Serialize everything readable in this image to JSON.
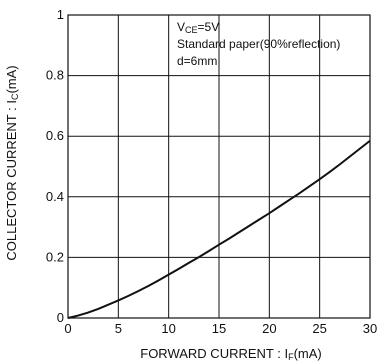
{
  "chart_data": {
    "type": "line",
    "title": "",
    "xlabel": {
      "text": "FORWARD CURRENT : I",
      "subscript": "F",
      "unit": "(mA)"
    },
    "ylabel": {
      "text": "COLLECTOR CURRENT : I",
      "subscript": "C",
      "unit": "(mA)"
    },
    "xlim": [
      0,
      30
    ],
    "ylim": [
      0,
      1
    ],
    "xticks": [
      0,
      5,
      10,
      15,
      20,
      25,
      30
    ],
    "yticks": [
      0,
      0.2,
      0.4,
      0.6,
      0.8,
      1
    ],
    "ytick_labels": [
      "0",
      "0.2",
      "0.4",
      "0.6",
      "0.8",
      "1"
    ],
    "xtick_labels": [
      "0",
      "5",
      "10",
      "15",
      "20",
      "25",
      "30"
    ],
    "grid": true,
    "annotations": {
      "vce": {
        "main": "V",
        "subscript": "CE",
        "rest": "=5V"
      },
      "paper": "Standard paper(90%reflection)",
      "distance": "d=6mm"
    },
    "series": [
      {
        "x": [
          0,
          1,
          2,
          3,
          4,
          5,
          6,
          7,
          8,
          9,
          10,
          11,
          12,
          13,
          14,
          15,
          16,
          17,
          18,
          19,
          20,
          21,
          22,
          23,
          24,
          25,
          26,
          27,
          28,
          29,
          30
        ],
        "y": [
          0,
          0.008,
          0.018,
          0.03,
          0.044,
          0.058,
          0.073,
          0.089,
          0.106,
          0.124,
          0.143,
          0.162,
          0.182,
          0.201,
          0.221,
          0.242,
          0.262,
          0.283,
          0.304,
          0.325,
          0.346,
          0.368,
          0.39,
          0.412,
          0.435,
          0.458,
          0.482,
          0.507,
          0.533,
          0.559,
          0.585
        ]
      }
    ]
  }
}
